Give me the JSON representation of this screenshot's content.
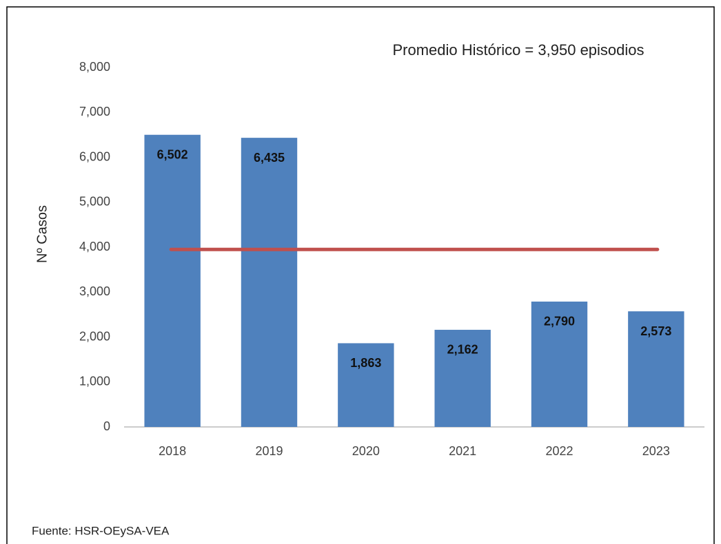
{
  "chart_data": {
    "type": "bar",
    "annotation": "Promedio Histórico  =  3,950 episodios",
    "ylabel": "Nº  Casos",
    "source": "Fuente: HSR-OEySA-VEA",
    "categories": [
      "2018",
      "2019",
      "2020",
      "2021",
      "2022",
      "2023"
    ],
    "values": [
      6502,
      6435,
      1863,
      2162,
      2790,
      2573
    ],
    "value_labels": [
      "6,502",
      "6,435",
      "1,863",
      "2,162",
      "2,790",
      "2,573"
    ],
    "color": "#4f81bd",
    "reference_line": {
      "value": 3950,
      "color": "#c0504d"
    },
    "ylim": [
      0,
      8000
    ],
    "yticks": [
      0,
      {
        "value": 1000,
        "label": "1,000"
      },
      {
        "value": 2000,
        "label": "2,000"
      },
      {
        "value": 3000,
        "label": "3,000"
      },
      {
        "value": 4000,
        "label": "4,000"
      },
      {
        "value": 5000,
        "label": "5,000"
      },
      {
        "value": 6000,
        "label": "6,000"
      },
      {
        "value": 7000,
        "label": "7,000"
      },
      {
        "value": 8000,
        "label": "8,000"
      }
    ],
    "grid": false
  }
}
